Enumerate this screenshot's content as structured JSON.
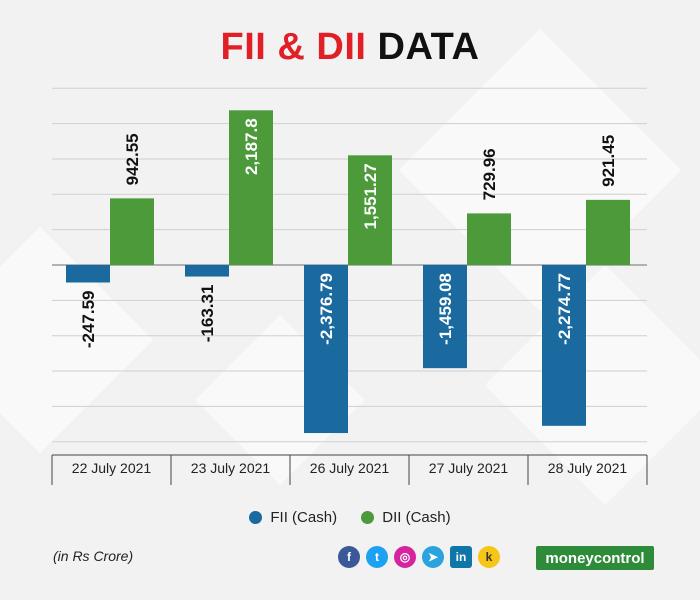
{
  "header": {
    "title_part1": "FII & DII",
    "title_part2": "DATA"
  },
  "note": "(in Rs Crore)",
  "brand": "moneycontrol",
  "social_icons": [
    "facebook-icon",
    "twitter-icon",
    "instagram-icon",
    "telegram-icon",
    "linkedin-icon",
    "koo-icon"
  ],
  "colors": {
    "fii": "#1a6aa0",
    "dii": "#4d9a3b",
    "title_red": "#e01f26"
  },
  "chart_data": {
    "type": "bar",
    "categories": [
      "22 July 2021",
      "23 July 2021",
      "26 July 2021",
      "27 July 2021",
      "28 July 2021"
    ],
    "series": [
      {
        "name": "FII (Cash)",
        "values": [
          -247.59,
          -163.31,
          -2376.79,
          -1459.08,
          -2274.77
        ],
        "labels": [
          "-247.59",
          "-163.31",
          "-2,376.79",
          "-1,459.08",
          "-2,274.77"
        ]
      },
      {
        "name": "DII (Cash)",
        "values": [
          942.55,
          2187.8,
          1551.27,
          729.96,
          921.45
        ],
        "labels": [
          "942.55",
          "2,187.8",
          "1,551.27",
          "729.96",
          "921.45"
        ]
      }
    ],
    "ylim": [
      -2500,
      2500
    ],
    "grid": true,
    "legend_position": "bottom"
  }
}
